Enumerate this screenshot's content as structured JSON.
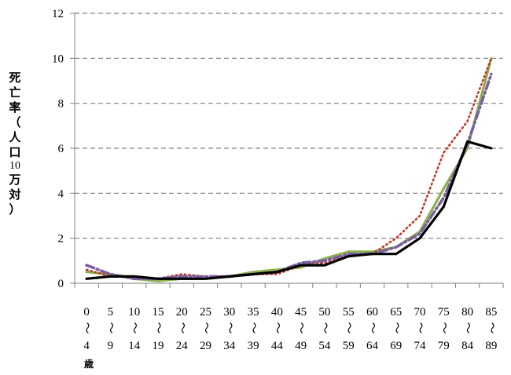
{
  "chart_data": {
    "type": "line",
    "title": "",
    "ylabel": "死亡率（人口10万対）",
    "ylabel_chars": [
      "死",
      "亡",
      "率",
      "（",
      "人",
      "口",
      "10",
      "万",
      "対",
      "）"
    ],
    "xunit": "歳",
    "ylim": [
      0,
      12
    ],
    "yticks": [
      "0",
      "2",
      "4",
      "6",
      "8",
      "10",
      "12"
    ],
    "grid": true,
    "categories": [
      {
        "top": "0",
        "bottom": "4"
      },
      {
        "top": "5",
        "bottom": "9"
      },
      {
        "top": "10",
        "bottom": "14"
      },
      {
        "top": "15",
        "bottom": "19"
      },
      {
        "top": "20",
        "bottom": "24"
      },
      {
        "top": "25",
        "bottom": "29"
      },
      {
        "top": "30",
        "bottom": "34"
      },
      {
        "top": "35",
        "bottom": "39"
      },
      {
        "top": "40",
        "bottom": "44"
      },
      {
        "top": "45",
        "bottom": "49"
      },
      {
        "top": "50",
        "bottom": "54"
      },
      {
        "top": "55",
        "bottom": "59"
      },
      {
        "top": "60",
        "bottom": "64"
      },
      {
        "top": "65",
        "bottom": "69"
      },
      {
        "top": "70",
        "bottom": "74"
      },
      {
        "top": "75",
        "bottom": "79"
      },
      {
        "top": "80",
        "bottom": "84"
      },
      {
        "top": "85",
        "bottom": "89"
      }
    ],
    "tilde": "〜",
    "series": [
      {
        "color": "#8eb050",
        "style": "solid",
        "values": [
          0.5,
          0.4,
          0.2,
          0.1,
          0.2,
          0.2,
          0.3,
          0.5,
          0.6,
          0.7,
          1.1,
          1.4,
          1.4,
          1.6,
          2.3,
          4.2,
          6.0,
          10.0
        ]
      },
      {
        "color": "#c0392b",
        "style": "dotted",
        "values": [
          0.6,
          0.3,
          0.3,
          0.2,
          0.4,
          0.3,
          0.3,
          0.4,
          0.4,
          0.8,
          0.9,
          1.2,
          1.3,
          2.0,
          3.0,
          5.8,
          7.2,
          10.0
        ]
      },
      {
        "color": "#7a5fa0",
        "style": "dashdot",
        "values": [
          0.8,
          0.4,
          0.2,
          0.2,
          0.3,
          0.3,
          0.3,
          0.4,
          0.5,
          0.9,
          1.0,
          1.3,
          1.3,
          1.6,
          2.2,
          3.8,
          6.2,
          9.3
        ]
      },
      {
        "color": "#000000",
        "style": "solid-thick",
        "values": [
          0.2,
          0.3,
          0.3,
          0.2,
          0.2,
          0.2,
          0.3,
          0.4,
          0.5,
          0.8,
          0.8,
          1.2,
          1.3,
          1.3,
          2.0,
          3.4,
          6.3,
          6.0
        ]
      }
    ]
  }
}
